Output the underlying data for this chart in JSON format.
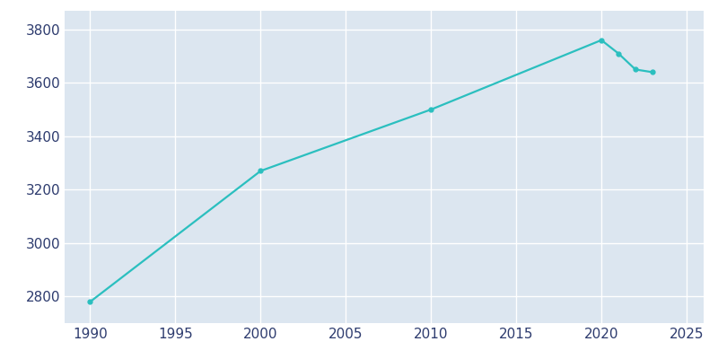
{
  "years": [
    1990,
    2000,
    2010,
    2020,
    2021,
    2022,
    2023
  ],
  "population": [
    2780,
    3270,
    3500,
    3760,
    3710,
    3650,
    3640
  ],
  "line_color": "#2bbfbf",
  "marker": "o",
  "marker_size": 3.5,
  "line_width": 1.6,
  "fig_bg_color": "#ffffff",
  "plot_bg_color": "#dce6f0",
  "grid_color": "#ffffff",
  "tick_color": "#2d3b6e",
  "tick_fontsize": 11,
  "xlim": [
    1988.5,
    2026
  ],
  "ylim": [
    2700,
    3870
  ],
  "xticks": [
    1990,
    1995,
    2000,
    2005,
    2010,
    2015,
    2020,
    2025
  ],
  "yticks": [
    2800,
    3000,
    3200,
    3400,
    3600,
    3800
  ]
}
